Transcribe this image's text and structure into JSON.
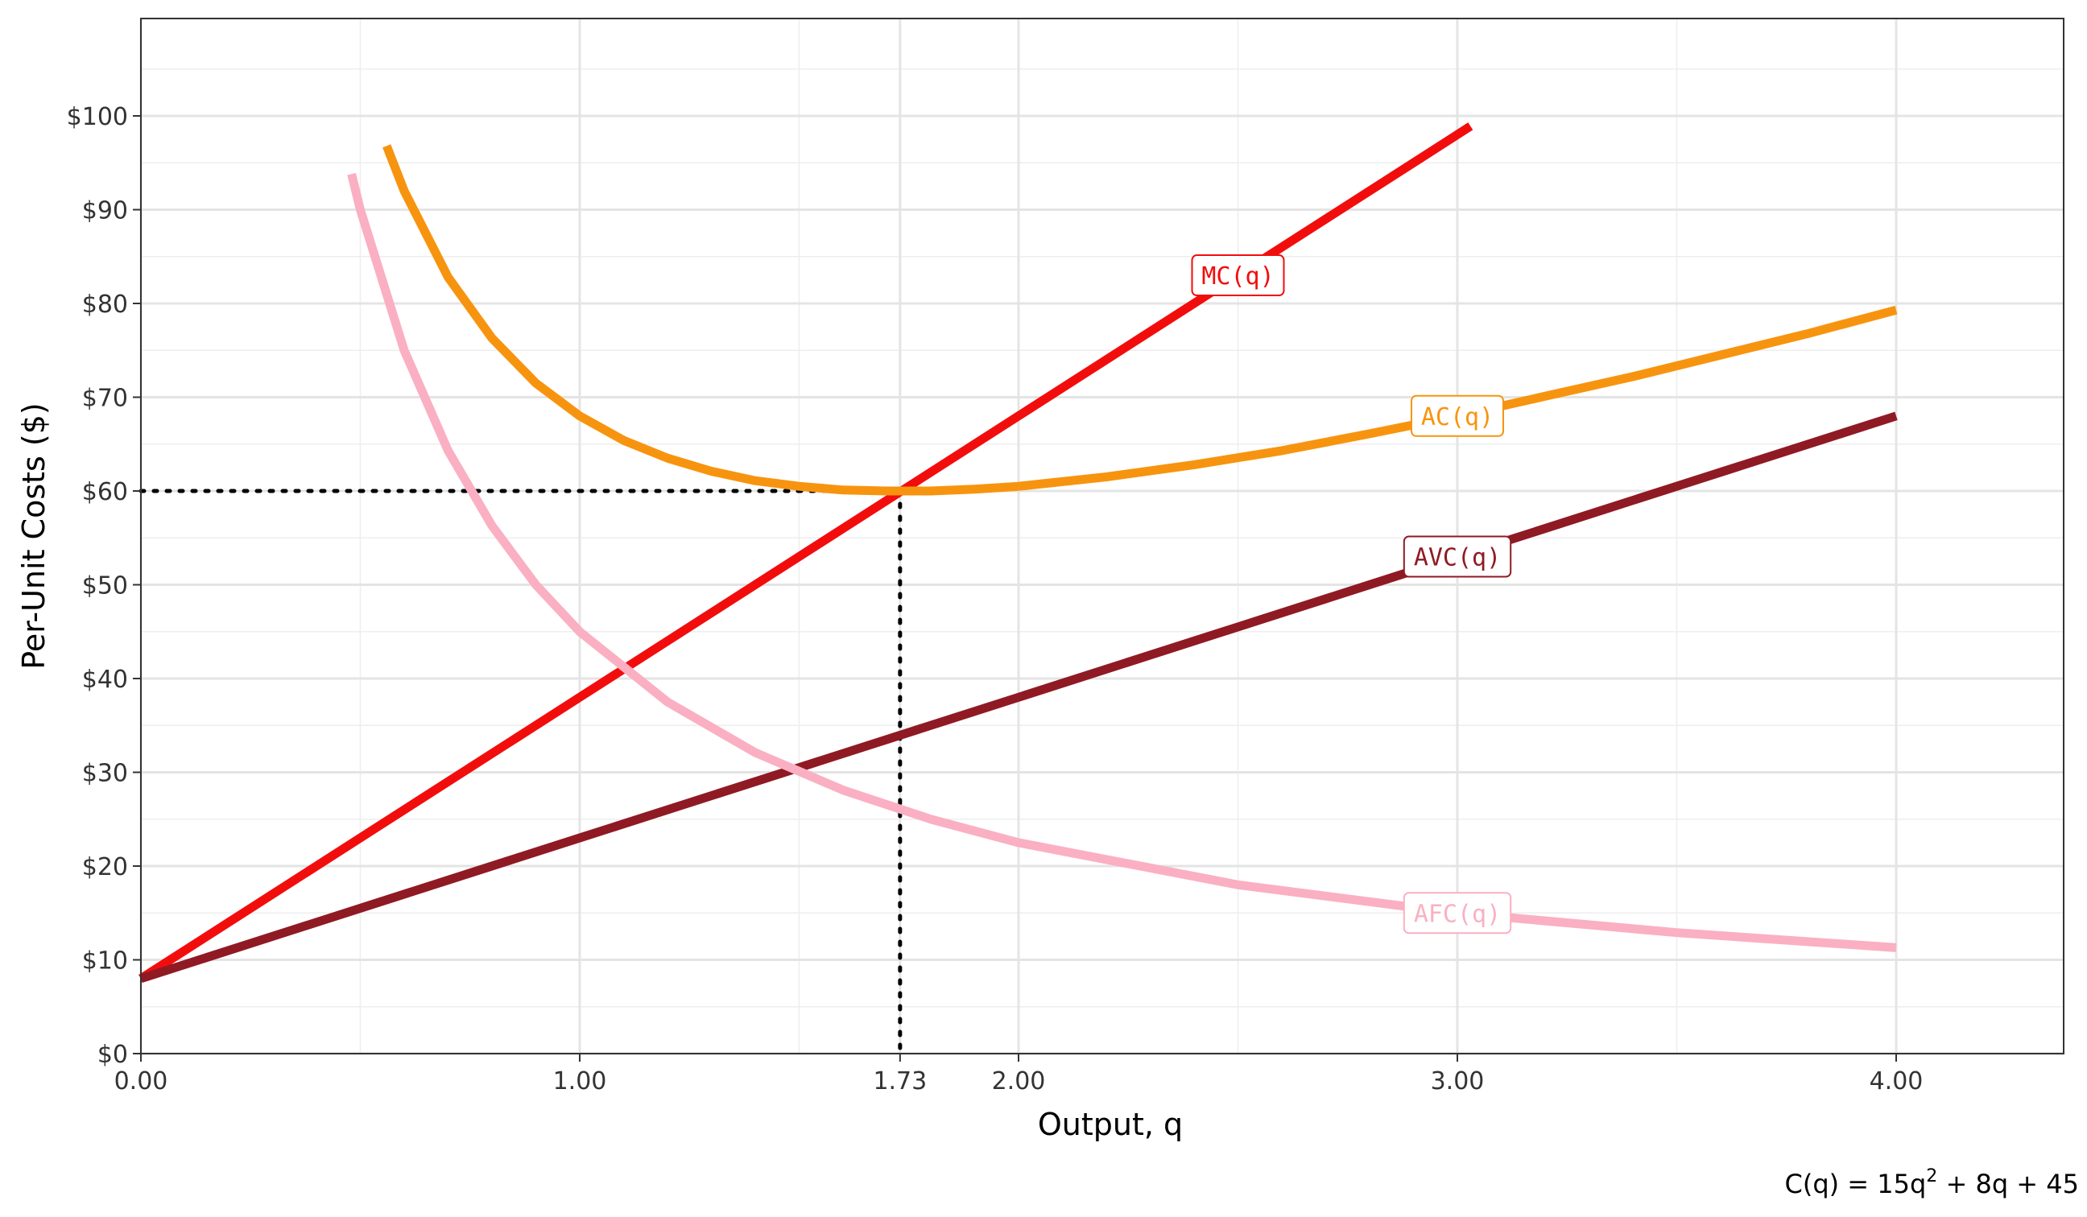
{
  "chart_data": {
    "type": "line",
    "xlabel": "Output, q",
    "ylabel": "Per-Unit Costs ($)",
    "xlim": [
      0,
      4.4
    ],
    "ylim": [
      0,
      110
    ],
    "x_major_ticks": [
      0,
      1,
      2,
      3,
      4
    ],
    "x_major_tick_labels": [
      "0.00",
      "1.00",
      "2.00",
      "3.00",
      "4.00"
    ],
    "x_minor_ticks": [
      0.5,
      1.5,
      2.5,
      3.5
    ],
    "x_extra_ticks": [
      1.73
    ],
    "x_extra_tick_labels": [
      "1.73"
    ],
    "y_ticks": [
      0,
      10,
      20,
      30,
      40,
      50,
      60,
      70,
      80,
      90,
      100
    ],
    "y_tick_labels": [
      "$0",
      "$10",
      "$20",
      "$30",
      "$40",
      "$50",
      "$60",
      "$70",
      "$80",
      "$90",
      "$100"
    ],
    "y_minor_ticks": [
      5,
      15,
      25,
      35,
      45,
      55,
      65,
      75,
      85,
      95,
      105
    ],
    "grid": true,
    "minimum_point": {
      "x": 1.73,
      "y": 60
    },
    "series": [
      {
        "name": "MC(q)",
        "color": "#f20d0d",
        "x": [
          0,
          0.5,
          1,
          1.5,
          2,
          2.5,
          3,
          3.03
        ],
        "y": [
          8,
          23,
          38,
          53,
          68,
          83,
          98,
          98.9
        ],
        "label_at": [
          2.5,
          83
        ]
      },
      {
        "name": "AC(q)",
        "color": "#f7940f",
        "x": [
          0.56,
          0.6,
          0.7,
          0.8,
          0.9,
          1,
          1.1,
          1.2,
          1.3,
          1.4,
          1.5,
          1.6,
          1.7,
          1.732,
          1.8,
          1.9,
          2,
          2.2,
          2.4,
          2.6,
          2.8,
          3,
          3.2,
          3.4,
          3.6,
          3.8,
          4
        ],
        "y": [
          96.8,
          92,
          82.8,
          76.3,
          71.5,
          68,
          65.4,
          63.5,
          62.1,
          61.1,
          60.5,
          60.1,
          60,
          60,
          60,
          60.2,
          60.5,
          61.5,
          62.8,
          64.3,
          66.1,
          68,
          70.1,
          72.2,
          74.5,
          76.8,
          79.3
        ],
        "label_at": [
          3,
          68
        ]
      },
      {
        "name": "AVC(q)",
        "color": "#8f1a24",
        "x": [
          0,
          1,
          2,
          3,
          4
        ],
        "y": [
          8,
          23,
          38,
          53,
          68
        ],
        "label_at": [
          3,
          53
        ]
      },
      {
        "name": "AFC(q)",
        "color": "#fab0c2",
        "x": [
          0.48,
          0.5,
          0.6,
          0.7,
          0.8,
          0.9,
          1,
          1.2,
          1.4,
          1.6,
          1.8,
          2,
          2.5,
          3,
          3.5,
          4
        ],
        "y": [
          93.8,
          90,
          75,
          64.3,
          56.3,
          50,
          45,
          37.5,
          32.1,
          28.1,
          25,
          22.5,
          18,
          15,
          12.9,
          11.3
        ],
        "label_at": [
          3,
          15
        ]
      }
    ]
  },
  "caption": {
    "prefix": "C(q) = 15q",
    "exponent": "2",
    "suffix": " + 8q + 45"
  }
}
